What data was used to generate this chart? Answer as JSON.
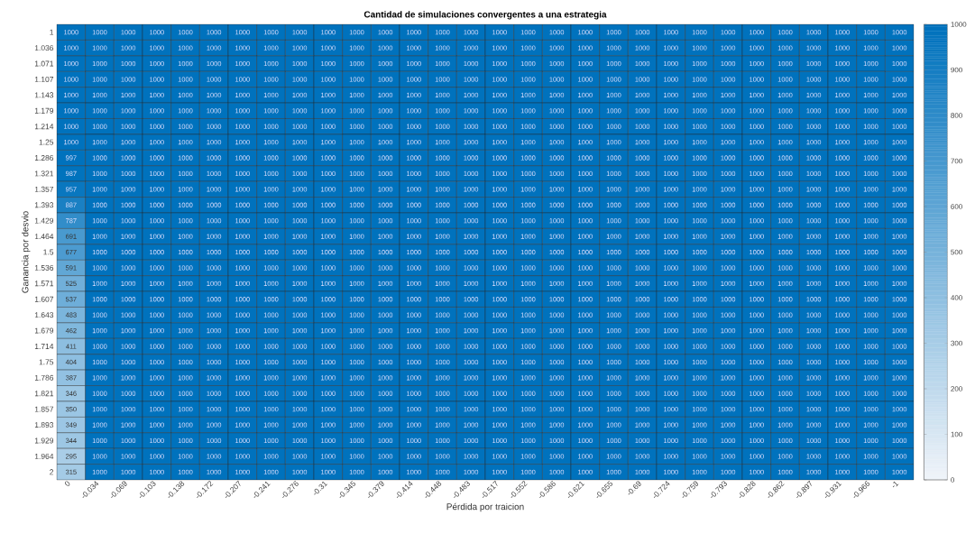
{
  "chart_data": {
    "type": "heatmap",
    "title": "Cantidad de simulaciones convergentes a una estrategia",
    "xlabel": "Pérdida por traicion",
    "ylabel": "Ganancia por desvio",
    "categories": [
      "0",
      "-0.034",
      "-0.069",
      "-0.103",
      "-0.138",
      "-0.172",
      "-0.207",
      "-0.241",
      "-0.276",
      "-0.31",
      "-0.345",
      "-0.379",
      "-0.414",
      "-0.448",
      "-0.483",
      "-0.517",
      "-0.552",
      "-0.586",
      "-0.621",
      "-0.655",
      "-0.69",
      "-0.724",
      "-0.759",
      "-0.793",
      "-0.828",
      "-0.862",
      "-0.897",
      "-0.931",
      "-0.966",
      "-1"
    ],
    "y_categories": [
      "1",
      "1.036",
      "1.071",
      "1.107",
      "1.143",
      "1.179",
      "1.214",
      "1.25",
      "1.286",
      "1.321",
      "1.357",
      "1.393",
      "1.429",
      "1.464",
      "1.5",
      "1.536",
      "1.571",
      "1.607",
      "1.643",
      "1.679",
      "1.714",
      "1.75",
      "1.786",
      "1.821",
      "1.857",
      "1.893",
      "1.929",
      "1.964",
      "2"
    ],
    "cells": [
      [
        1000,
        1000,
        1000,
        1000,
        1000,
        1000,
        1000,
        1000,
        1000,
        1000,
        1000,
        1000,
        1000,
        1000,
        1000,
        1000,
        1000,
        1000,
        1000,
        1000,
        1000,
        1000,
        1000,
        1000,
        1000,
        1000,
        1000,
        1000,
        1000,
        1000
      ],
      [
        1000,
        1000,
        1000,
        1000,
        1000,
        1000,
        1000,
        1000,
        1000,
        1000,
        1000,
        1000,
        1000,
        1000,
        1000,
        1000,
        1000,
        1000,
        1000,
        1000,
        1000,
        1000,
        1000,
        1000,
        1000,
        1000,
        1000,
        1000,
        1000,
        1000
      ],
      [
        1000,
        1000,
        1000,
        1000,
        1000,
        1000,
        1000,
        1000,
        1000,
        1000,
        1000,
        1000,
        1000,
        1000,
        1000,
        1000,
        1000,
        1000,
        1000,
        1000,
        1000,
        1000,
        1000,
        1000,
        1000,
        1000,
        1000,
        1000,
        1000,
        1000
      ],
      [
        1000,
        1000,
        1000,
        1000,
        1000,
        1000,
        1000,
        1000,
        1000,
        1000,
        1000,
        1000,
        1000,
        1000,
        1000,
        1000,
        1000,
        1000,
        1000,
        1000,
        1000,
        1000,
        1000,
        1000,
        1000,
        1000,
        1000,
        1000,
        1000,
        1000
      ],
      [
        1000,
        1000,
        1000,
        1000,
        1000,
        1000,
        1000,
        1000,
        1000,
        1000,
        1000,
        1000,
        1000,
        1000,
        1000,
        1000,
        1000,
        1000,
        1000,
        1000,
        1000,
        1000,
        1000,
        1000,
        1000,
        1000,
        1000,
        1000,
        1000,
        1000
      ],
      [
        1000,
        1000,
        1000,
        1000,
        1000,
        1000,
        1000,
        1000,
        1000,
        1000,
        1000,
        1000,
        1000,
        1000,
        1000,
        1000,
        1000,
        1000,
        1000,
        1000,
        1000,
        1000,
        1000,
        1000,
        1000,
        1000,
        1000,
        1000,
        1000,
        1000
      ],
      [
        1000,
        1000,
        1000,
        1000,
        1000,
        1000,
        1000,
        1000,
        1000,
        1000,
        1000,
        1000,
        1000,
        1000,
        1000,
        1000,
        1000,
        1000,
        1000,
        1000,
        1000,
        1000,
        1000,
        1000,
        1000,
        1000,
        1000,
        1000,
        1000,
        1000
      ],
      [
        1000,
        1000,
        1000,
        1000,
        1000,
        1000,
        1000,
        1000,
        1000,
        1000,
        1000,
        1000,
        1000,
        1000,
        1000,
        1000,
        1000,
        1000,
        1000,
        1000,
        1000,
        1000,
        1000,
        1000,
        1000,
        1000,
        1000,
        1000,
        1000,
        1000
      ],
      [
        997,
        1000,
        1000,
        1000,
        1000,
        1000,
        1000,
        1000,
        1000,
        1000,
        1000,
        1000,
        1000,
        1000,
        1000,
        1000,
        1000,
        1000,
        1000,
        1000,
        1000,
        1000,
        1000,
        1000,
        1000,
        1000,
        1000,
        1000,
        1000,
        1000
      ],
      [
        987,
        1000,
        1000,
        1000,
        1000,
        1000,
        1000,
        1000,
        1000,
        1000,
        1000,
        1000,
        1000,
        1000,
        1000,
        1000,
        1000,
        1000,
        1000,
        1000,
        1000,
        1000,
        1000,
        1000,
        1000,
        1000,
        1000,
        1000,
        1000,
        1000
      ],
      [
        957,
        1000,
        1000,
        1000,
        1000,
        1000,
        1000,
        1000,
        1000,
        1000,
        1000,
        1000,
        1000,
        1000,
        1000,
        1000,
        1000,
        1000,
        1000,
        1000,
        1000,
        1000,
        1000,
        1000,
        1000,
        1000,
        1000,
        1000,
        1000,
        1000
      ],
      [
        887,
        1000,
        1000,
        1000,
        1000,
        1000,
        1000,
        1000,
        1000,
        1000,
        1000,
        1000,
        1000,
        1000,
        1000,
        1000,
        1000,
        1000,
        1000,
        1000,
        1000,
        1000,
        1000,
        1000,
        1000,
        1000,
        1000,
        1000,
        1000,
        1000
      ],
      [
        787,
        1000,
        1000,
        1000,
        1000,
        1000,
        1000,
        1000,
        1000,
        1000,
        1000,
        1000,
        1000,
        1000,
        1000,
        1000,
        1000,
        1000,
        1000,
        1000,
        1000,
        1000,
        1000,
        1000,
        1000,
        1000,
        1000,
        1000,
        1000,
        1000
      ],
      [
        691,
        1000,
        1000,
        1000,
        1000,
        1000,
        1000,
        1000,
        1000,
        1000,
        1000,
        1000,
        1000,
        1000,
        1000,
        1000,
        1000,
        1000,
        1000,
        1000,
        1000,
        1000,
        1000,
        1000,
        1000,
        1000,
        1000,
        1000,
        1000,
        1000
      ],
      [
        677,
        1000,
        1000,
        1000,
        1000,
        1000,
        1000,
        1000,
        1000,
        1000,
        1000,
        1000,
        1000,
        1000,
        1000,
        1000,
        1000,
        1000,
        1000,
        1000,
        1000,
        1000,
        1000,
        1000,
        1000,
        1000,
        1000,
        1000,
        1000,
        1000
      ],
      [
        591,
        1000,
        1000,
        1000,
        1000,
        1000,
        1000,
        1000,
        1000,
        1000,
        1000,
        1000,
        1000,
        1000,
        1000,
        1000,
        1000,
        1000,
        1000,
        1000,
        1000,
        1000,
        1000,
        1000,
        1000,
        1000,
        1000,
        1000,
        1000,
        1000
      ],
      [
        525,
        1000,
        1000,
        1000,
        1000,
        1000,
        1000,
        1000,
        1000,
        1000,
        1000,
        1000,
        1000,
        1000,
        1000,
        1000,
        1000,
        1000,
        1000,
        1000,
        1000,
        1000,
        1000,
        1000,
        1000,
        1000,
        1000,
        1000,
        1000,
        1000
      ],
      [
        537,
        1000,
        1000,
        1000,
        1000,
        1000,
        1000,
        1000,
        1000,
        1000,
        1000,
        1000,
        1000,
        1000,
        1000,
        1000,
        1000,
        1000,
        1000,
        1000,
        1000,
        1000,
        1000,
        1000,
        1000,
        1000,
        1000,
        1000,
        1000,
        1000
      ],
      [
        483,
        1000,
        1000,
        1000,
        1000,
        1000,
        1000,
        1000,
        1000,
        1000,
        1000,
        1000,
        1000,
        1000,
        1000,
        1000,
        1000,
        1000,
        1000,
        1000,
        1000,
        1000,
        1000,
        1000,
        1000,
        1000,
        1000,
        1000,
        1000,
        1000
      ],
      [
        462,
        1000,
        1000,
        1000,
        1000,
        1000,
        1000,
        1000,
        1000,
        1000,
        1000,
        1000,
        1000,
        1000,
        1000,
        1000,
        1000,
        1000,
        1000,
        1000,
        1000,
        1000,
        1000,
        1000,
        1000,
        1000,
        1000,
        1000,
        1000,
        1000
      ],
      [
        411,
        1000,
        1000,
        1000,
        1000,
        1000,
        1000,
        1000,
        1000,
        1000,
        1000,
        1000,
        1000,
        1000,
        1000,
        1000,
        1000,
        1000,
        1000,
        1000,
        1000,
        1000,
        1000,
        1000,
        1000,
        1000,
        1000,
        1000,
        1000,
        1000
      ],
      [
        404,
        1000,
        1000,
        1000,
        1000,
        1000,
        1000,
        1000,
        1000,
        1000,
        1000,
        1000,
        1000,
        1000,
        1000,
        1000,
        1000,
        1000,
        1000,
        1000,
        1000,
        1000,
        1000,
        1000,
        1000,
        1000,
        1000,
        1000,
        1000,
        1000
      ],
      [
        387,
        1000,
        1000,
        1000,
        1000,
        1000,
        1000,
        1000,
        1000,
        1000,
        1000,
        1000,
        1000,
        1000,
        1000,
        1000,
        1000,
        1000,
        1000,
        1000,
        1000,
        1000,
        1000,
        1000,
        1000,
        1000,
        1000,
        1000,
        1000,
        1000
      ],
      [
        346,
        1000,
        1000,
        1000,
        1000,
        1000,
        1000,
        1000,
        1000,
        1000,
        1000,
        1000,
        1000,
        1000,
        1000,
        1000,
        1000,
        1000,
        1000,
        1000,
        1000,
        1000,
        1000,
        1000,
        1000,
        1000,
        1000,
        1000,
        1000,
        1000
      ],
      [
        350,
        1000,
        1000,
        1000,
        1000,
        1000,
        1000,
        1000,
        1000,
        1000,
        1000,
        1000,
        1000,
        1000,
        1000,
        1000,
        1000,
        1000,
        1000,
        1000,
        1000,
        1000,
        1000,
        1000,
        1000,
        1000,
        1000,
        1000,
        1000,
        1000
      ],
      [
        349,
        1000,
        1000,
        1000,
        1000,
        1000,
        1000,
        1000,
        1000,
        1000,
        1000,
        1000,
        1000,
        1000,
        1000,
        1000,
        1000,
        1000,
        1000,
        1000,
        1000,
        1000,
        1000,
        1000,
        1000,
        1000,
        1000,
        1000,
        1000,
        1000
      ],
      [
        344,
        1000,
        1000,
        1000,
        1000,
        1000,
        1000,
        1000,
        1000,
        1000,
        1000,
        1000,
        1000,
        1000,
        1000,
        1000,
        1000,
        1000,
        1000,
        1000,
        1000,
        1000,
        1000,
        1000,
        1000,
        1000,
        1000,
        1000,
        1000,
        1000
      ],
      [
        295,
        1000,
        1000,
        1000,
        1000,
        1000,
        1000,
        1000,
        1000,
        1000,
        1000,
        1000,
        1000,
        1000,
        1000,
        1000,
        1000,
        1000,
        1000,
        1000,
        1000,
        1000,
        1000,
        1000,
        1000,
        1000,
        1000,
        1000,
        1000,
        1000
      ],
      [
        315,
        1000,
        1000,
        1000,
        1000,
        1000,
        1000,
        1000,
        1000,
        1000,
        1000,
        1000,
        1000,
        1000,
        1000,
        1000,
        1000,
        1000,
        1000,
        1000,
        1000,
        1000,
        1000,
        1000,
        1000,
        1000,
        1000,
        1000,
        1000,
        1000
      ]
    ],
    "data_labels": true,
    "clim": [
      0,
      1000
    ],
    "cticks": [
      0,
      100,
      200,
      300,
      400,
      500,
      600,
      700,
      800,
      900,
      1000
    ]
  }
}
